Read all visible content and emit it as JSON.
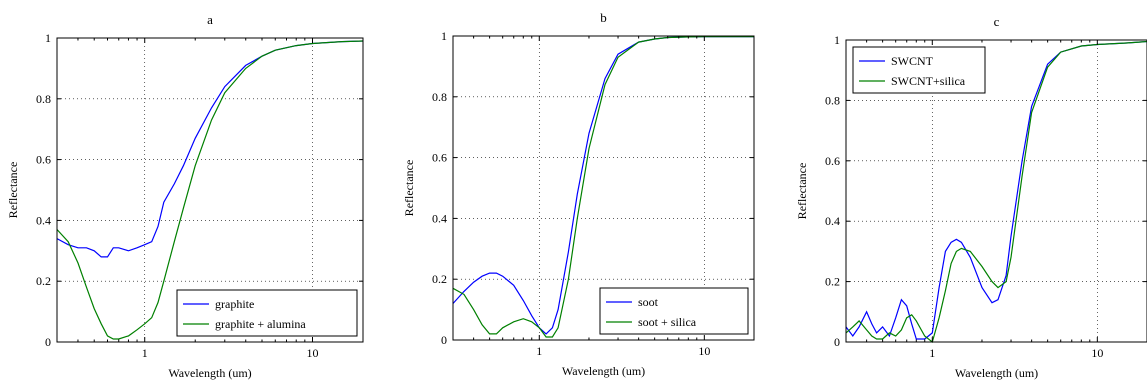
{
  "chart_data": [
    {
      "type": "line",
      "title": "a",
      "xlabel": "Wavelength (um)",
      "ylabel": "Reflectance",
      "xscale": "log",
      "xlim": [
        0.3,
        20
      ],
      "ylim": [
        0,
        1
      ],
      "xticks": [
        1,
        10
      ],
      "xtick_labels": [
        "1",
        "10"
      ],
      "yticks": [
        0,
        0.2,
        0.4,
        0.6,
        0.8,
        1
      ],
      "ytick_labels": [
        "0",
        "0.2",
        "0.4",
        "0.6",
        "0.8",
        "1"
      ],
      "grid": true,
      "legend_position": "bottom-right",
      "series": [
        {
          "name": "graphite",
          "color": "#0000ff",
          "x": [
            0.3,
            0.35,
            0.4,
            0.45,
            0.5,
            0.55,
            0.6,
            0.65,
            0.7,
            0.8,
            0.9,
            1.0,
            1.1,
            1.2,
            1.3,
            1.5,
            1.7,
            2.0,
            2.5,
            3.0,
            4.0,
            5.0,
            6.0,
            8.0,
            10,
            15,
            20
          ],
          "y": [
            0.34,
            0.32,
            0.31,
            0.31,
            0.3,
            0.28,
            0.28,
            0.31,
            0.31,
            0.3,
            0.31,
            0.32,
            0.33,
            0.38,
            0.46,
            0.52,
            0.58,
            0.67,
            0.77,
            0.84,
            0.91,
            0.94,
            0.96,
            0.975,
            0.982,
            0.988,
            0.99
          ]
        },
        {
          "name": "graphite + alumina",
          "color": "#008000",
          "x": [
            0.3,
            0.35,
            0.4,
            0.45,
            0.5,
            0.55,
            0.6,
            0.65,
            0.7,
            0.8,
            0.9,
            1.0,
            1.1,
            1.2,
            1.3,
            1.5,
            1.7,
            2.0,
            2.5,
            3.0,
            4.0,
            5.0,
            6.0,
            8.0,
            10,
            15,
            20
          ],
          "y": [
            0.37,
            0.33,
            0.26,
            0.18,
            0.11,
            0.06,
            0.02,
            0.01,
            0.01,
            0.02,
            0.04,
            0.06,
            0.08,
            0.13,
            0.2,
            0.33,
            0.44,
            0.58,
            0.73,
            0.82,
            0.9,
            0.94,
            0.96,
            0.975,
            0.982,
            0.988,
            0.99
          ]
        }
      ]
    },
    {
      "type": "line",
      "title": "b",
      "xlabel": "Wavelength (um)",
      "ylabel": "Reflectance",
      "xscale": "log",
      "xlim": [
        0.3,
        20
      ],
      "ylim": [
        0,
        1
      ],
      "xticks": [
        1,
        10
      ],
      "xtick_labels": [
        "1",
        "10"
      ],
      "yticks": [
        0,
        0.2,
        0.4,
        0.6,
        0.8,
        1
      ],
      "ytick_labels": [
        "0",
        "0.2",
        "0.4",
        "0.6",
        "0.8",
        "1"
      ],
      "grid": true,
      "legend_position": "bottom-right",
      "series": [
        {
          "name": "soot",
          "color": "#0000ff",
          "x": [
            0.3,
            0.35,
            0.4,
            0.45,
            0.5,
            0.55,
            0.6,
            0.7,
            0.8,
            0.9,
            1.0,
            1.1,
            1.2,
            1.3,
            1.5,
            1.7,
            2.0,
            2.5,
            3.0,
            4.0,
            5.0,
            6.0,
            8.0,
            10,
            15,
            20
          ],
          "y": [
            0.12,
            0.16,
            0.19,
            0.21,
            0.22,
            0.22,
            0.21,
            0.18,
            0.13,
            0.08,
            0.04,
            0.02,
            0.04,
            0.1,
            0.29,
            0.48,
            0.68,
            0.86,
            0.94,
            0.98,
            0.99,
            0.995,
            0.997,
            0.998,
            0.998,
            0.998
          ]
        },
        {
          "name": "soot + silica",
          "color": "#008000",
          "x": [
            0.3,
            0.35,
            0.4,
            0.45,
            0.5,
            0.55,
            0.6,
            0.7,
            0.8,
            0.9,
            1.0,
            1.1,
            1.2,
            1.3,
            1.5,
            1.7,
            2.0,
            2.5,
            3.0,
            4.0,
            5.0,
            6.0,
            8.0,
            10,
            15,
            20
          ],
          "y": [
            0.17,
            0.15,
            0.1,
            0.05,
            0.02,
            0.02,
            0.04,
            0.06,
            0.07,
            0.06,
            0.04,
            0.01,
            0.01,
            0.04,
            0.2,
            0.4,
            0.63,
            0.84,
            0.93,
            0.98,
            0.99,
            0.995,
            0.997,
            0.998,
            0.998,
            0.998
          ]
        }
      ]
    },
    {
      "type": "line",
      "title": "c",
      "xlabel": "Wavelength (um)",
      "ylabel": "Reflectance",
      "xscale": "log",
      "xlim": [
        0.3,
        20
      ],
      "ylim": [
        0,
        1
      ],
      "xticks": [
        1,
        10
      ],
      "xtick_labels": [
        "1",
        "10"
      ],
      "yticks": [
        0,
        0.2,
        0.4,
        0.6,
        0.8,
        1
      ],
      "ytick_labels": [
        "0",
        "0.2",
        "0.4",
        "0.6",
        "0.8",
        "1"
      ],
      "grid": true,
      "legend_position": "top-left",
      "series": [
        {
          "name": "SWCNT",
          "color": "#0000ff",
          "x": [
            0.3,
            0.33,
            0.36,
            0.4,
            0.43,
            0.46,
            0.5,
            0.55,
            0.6,
            0.65,
            0.7,
            0.75,
            0.8,
            0.9,
            1.0,
            1.1,
            1.2,
            1.3,
            1.4,
            1.5,
            1.7,
            2.0,
            2.3,
            2.5,
            2.8,
            3.0,
            3.5,
            4.0,
            5.0,
            6.0,
            8.0,
            10,
            15,
            20
          ],
          "y": [
            0.05,
            0.02,
            0.05,
            0.1,
            0.06,
            0.03,
            0.05,
            0.02,
            0.08,
            0.14,
            0.12,
            0.06,
            0.01,
            0.01,
            0.03,
            0.18,
            0.3,
            0.33,
            0.34,
            0.33,
            0.28,
            0.18,
            0.13,
            0.14,
            0.22,
            0.35,
            0.6,
            0.78,
            0.92,
            0.96,
            0.98,
            0.985,
            0.99,
            0.995
          ]
        },
        {
          "name": "SWCNT+silica",
          "color": "#008000",
          "x": [
            0.3,
            0.33,
            0.36,
            0.4,
            0.43,
            0.46,
            0.5,
            0.55,
            0.6,
            0.65,
            0.7,
            0.75,
            0.8,
            0.9,
            1.0,
            1.1,
            1.2,
            1.3,
            1.4,
            1.5,
            1.7,
            2.0,
            2.3,
            2.5,
            2.8,
            3.0,
            3.5,
            4.0,
            5.0,
            6.0,
            8.0,
            10,
            15,
            20
          ],
          "y": [
            0.03,
            0.05,
            0.07,
            0.04,
            0.02,
            0.01,
            0.01,
            0.03,
            0.02,
            0.04,
            0.08,
            0.09,
            0.07,
            0.02,
            0.0,
            0.08,
            0.17,
            0.26,
            0.3,
            0.31,
            0.3,
            0.25,
            0.2,
            0.18,
            0.2,
            0.28,
            0.55,
            0.76,
            0.91,
            0.96,
            0.98,
            0.985,
            0.99,
            0.995
          ]
        }
      ]
    }
  ]
}
